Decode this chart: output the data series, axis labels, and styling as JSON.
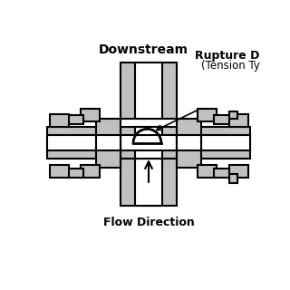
{
  "bg_color": "#ffffff",
  "line_color": "#000000",
  "fill_color": "#c0c0c0",
  "lw": 1.5,
  "label_downstream": "Downstream",
  "label_rupture1": "Rupture D",
  "label_rupture2": "(Tension Ty",
  "label_flow": "Flow Direction"
}
